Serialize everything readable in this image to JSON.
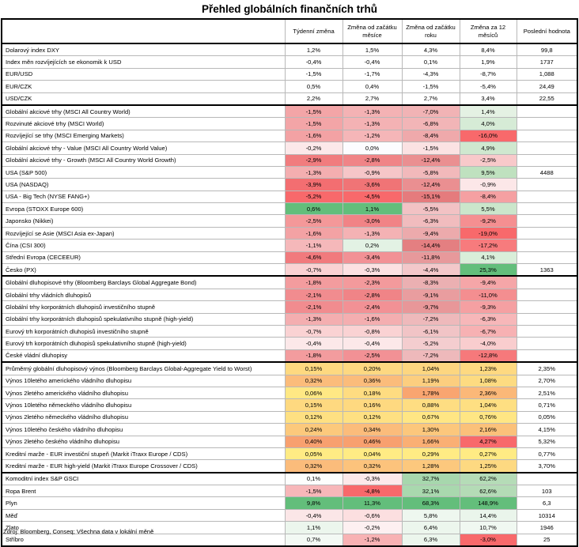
{
  "title": "Přehled globálních finančních trhů",
  "source": "Zdroj: Bloomberg, Conseq; Všechna data v lokální měně",
  "headers": [
    "",
    "Týdenní změna",
    "Změna od začátku měsíce",
    "Změna od začátku roku",
    "Změna za 12 měsíců",
    "Poslední hodnota"
  ],
  "groups": [
    {
      "rows": [
        [
          "Dolarový index DXY",
          "1,2%",
          "1,5%",
          "4,3%",
          "8,4%",
          "99,8"
        ],
        [
          "Index měn rozvíjejících se ekonomik k USD",
          "-0,4%",
          "-0,4%",
          "0,1%",
          "1,9%",
          "1737"
        ],
        [
          "EUR/USD",
          "-1,5%",
          "-1,7%",
          "-4,3%",
          "-8,7%",
          "1,088"
        ],
        [
          "EUR/CZK",
          "0,5%",
          "0,4%",
          "-1,5%",
          "-5,4%",
          "24,49"
        ],
        [
          "USD/CZK",
          "2,2%",
          "2,7%",
          "2,7%",
          "3,4%",
          "22,55"
        ]
      ],
      "colors": [
        [
          "",
          "",
          "",
          "",
          ""
        ],
        [
          "",
          "",
          "",
          "",
          ""
        ],
        [
          "",
          "",
          "",
          "",
          ""
        ],
        [
          "",
          "",
          "",
          "",
          ""
        ],
        [
          "",
          "",
          "",
          "",
          ""
        ]
      ]
    },
    {
      "rows": [
        [
          "Globální akciové trhy (MSCI All Country World)",
          "-1,5%",
          "-1,3%",
          "-7,0%",
          "1,4%",
          ""
        ],
        [
          "Rozvinuté akciové trhy (MSCI World)",
          "-1,5%",
          "-1,3%",
          "-6,8%",
          "4,0%",
          ""
        ],
        [
          "Rozvíjející se trhy (MSCI Emerging Markets)",
          "-1,6%",
          "-1,2%",
          "-8,4%",
          "-16,0%",
          ""
        ],
        [
          "Globální akciové trhy - Value (MSCI All Country World Value)",
          "-0,2%",
          "0,0%",
          "-1,5%",
          "4,9%",
          ""
        ],
        [
          "Globální akciové trhy - Growth (MSCI All Country World Growth)",
          "-2,9%",
          "-2,8%",
          "-12,4%",
          "-2,5%",
          ""
        ],
        [
          "USA (S&P 500)",
          "-1,3%",
          "-0,9%",
          "-5,8%",
          "9,5%",
          "4488"
        ],
        [
          "USA (NASDAQ)",
          "-3,9%",
          "-3,6%",
          "-12,4%",
          "-0,9%",
          ""
        ],
        [
          "USA - Big Tech (NYSE FANG+)",
          "-5,2%",
          "-4,5%",
          "-15,1%",
          "-8,4%",
          ""
        ],
        [
          "Evropa (STOXX Europe 600)",
          "0,6%",
          "1,1%",
          "-5,5%",
          "5,5%",
          ""
        ],
        [
          "Japonsko (Nikkei)",
          "-2,5%",
          "-3,0%",
          "-6,3%",
          "-9,2%",
          ""
        ],
        [
          "Rozvíjející se Asie (MSCI Asia ex-Japan)",
          "-1,6%",
          "-1,3%",
          "-9,4%",
          "-19,0%",
          ""
        ],
        [
          "Čína (CSI 300)",
          "-1,1%",
          "0,2%",
          "-14,4%",
          "-17,2%",
          ""
        ],
        [
          "Střední Evropa (CECEEUR)",
          "-4,6%",
          "-3,4%",
          "-11,8%",
          "4,1%",
          ""
        ],
        [
          "Česko (PX)",
          "-0,7%",
          "-0,3%",
          "-4,4%",
          "25,3%",
          "1363"
        ]
      ],
      "colors": [
        [
          "#f3a5a7",
          "#f4b2b4",
          "#f1b3b5",
          "#e4f1e3",
          ""
        ],
        [
          "#f3a5a7",
          "#f4b2b4",
          "#f2b5b7",
          "#d6ebd6",
          ""
        ],
        [
          "#f3a2a4",
          "#f5b6b8",
          "#efa9ab",
          "#f8696b",
          ""
        ],
        [
          "#fce8e9",
          "#fcfcff",
          "#fbe2e3",
          "#cfe8cf",
          ""
        ],
        [
          "#f17c7e",
          "#f08487",
          "#ea8f91",
          "#f8c9ca",
          ""
        ],
        [
          "#f4aeb0",
          "#f6c6c8",
          "#f2b9bb",
          "#bfe1bf",
          ""
        ],
        [
          "#f36e71",
          "#f07476",
          "#ea8f91",
          "#fce7e8",
          ""
        ],
        [
          "#f8696b",
          "#f8696b",
          "#e57b7d",
          "#f5a0a2",
          ""
        ],
        [
          "#63be7b",
          "#63be7b",
          "#f2c2c4",
          "#cbe6cb",
          ""
        ],
        [
          "#f49899",
          "#f18386",
          "#f1bcbe",
          "#f58f91",
          ""
        ],
        [
          "#f3a2a4",
          "#f4b2b4",
          "#ecaaac",
          "#f8696b",
          ""
        ],
        [
          "#f5b8ba",
          "#e3f2e4",
          "#e47f81",
          "#f77b7d",
          ""
        ],
        [
          "#f17a7d",
          "#f29195",
          "#e7999b",
          "#d9eed9",
          ""
        ],
        [
          "#fad2d3",
          "#fce1e2",
          "#f3c8ca",
          "#63be7b",
          ""
        ]
      ]
    },
    {
      "rows": [
        [
          "Globální dluhopisové trhy (Bloomberg Barclays Global Aggregate Bond)",
          "-1,8%",
          "-2,3%",
          "-8,3%",
          "-9,4%",
          ""
        ],
        [
          "Globální trhy vládních dluhopisů",
          "-2,1%",
          "-2,8%",
          "-9,1%",
          "-11,0%",
          ""
        ],
        [
          "Globální trhy korporátních dluhopisů investičního stupně",
          "-2,1%",
          "-2,4%",
          "-9,7%",
          "-9,3%",
          ""
        ],
        [
          "Globální trhy korporátních dluhopisů spekulativního stupně (high-yield)",
          "-1,3%",
          "-1,6%",
          "-7,2%",
          "-6,3%",
          ""
        ],
        [
          "Eurový trh korporátních dluhopisů investičního stupně",
          "-0,7%",
          "-0,8%",
          "-6,1%",
          "-6,7%",
          ""
        ],
        [
          "Eurový trh korporátních dluhopisů spekulativního stupně (high-yield)",
          "-0,4%",
          "-0,4%",
          "-5,2%",
          "-4,0%",
          ""
        ],
        [
          "České vládní dluhopisy",
          "-1,8%",
          "-2,5%",
          "-7,2%",
          "-12,8%",
          ""
        ]
      ],
      "colors": [
        [
          "#f39c9e",
          "#f39a9c",
          "#ebb0b2",
          "#f5a6a8",
          ""
        ],
        [
          "#f18c8f",
          "#f08487",
          "#e99d9f",
          "#f48e90",
          ""
        ],
        [
          "#f18c8f",
          "#f29195",
          "#e89799",
          "#f5a0a2",
          ""
        ],
        [
          "#f4aeb0",
          "#f4aeb0",
          "#eeb9bb",
          "#f7b7b9",
          ""
        ],
        [
          "#fad2d3",
          "#fad2d3",
          "#f1c4c6",
          "#f7b1b3",
          ""
        ],
        [
          "#fce8e9",
          "#fce8e9",
          "#f4cdcf",
          "#f9cdce",
          ""
        ],
        [
          "#f39c9e",
          "#f29195",
          "#eeb9bb",
          "#f6797b",
          ""
        ]
      ]
    },
    {
      "rows": [
        [
          "Průměrný globální dluhopisový výnos (Bloomberg Barclays Global-Aggregate Yield to Worst)",
          "0,15%",
          "0,20%",
          "1,04%",
          "1,23%",
          "2,35%"
        ],
        [
          "Výnos 10letého amerického vládního dluhopisu",
          "0,32%",
          "0,36%",
          "1,19%",
          "1,08%",
          "2,70%"
        ],
        [
          "Výnos 2letého amerického vládního dluhopisu",
          "0,06%",
          "0,18%",
          "1,78%",
          "2,36%",
          "2,51%"
        ],
        [
          "Výnos 10letého německého vládního dluhopisu",
          "0,15%",
          "0,16%",
          "0,88%",
          "1,04%",
          "0,71%"
        ],
        [
          "Výnos 2letého německého vládního dluhopisu",
          "0,12%",
          "0,12%",
          "0,67%",
          "0,76%",
          "0,05%"
        ],
        [
          "Výnos 10letého českého vládního dluhopisu",
          "0,24%",
          "0,34%",
          "1,30%",
          "2,16%",
          "4,15%"
        ],
        [
          "Výnos 2letého českého vládního dluhopisu",
          "0,40%",
          "0,46%",
          "1,66%",
          "4,27%",
          "5,32%"
        ],
        [
          "Kreditní marže - EUR investiční stupeň (Markit iTraxx Europe / CDS)",
          "0,05%",
          "0,04%",
          "0,29%",
          "0,27%",
          "0,77%"
        ],
        [
          "Kreditní marže - EUR high-yield (Markit iTraxx Europe Crossover / CDS)",
          "0,32%",
          "0,32%",
          "1,28%",
          "1,25%",
          "3,70%"
        ]
      ],
      "colors": [
        [
          "#fed980",
          "#fdd881",
          "#fdd680",
          "#fed981",
          ""
        ],
        [
          "#fbbc7b",
          "#fbbc7b",
          "#fcce7f",
          "#fddb81",
          ""
        ],
        [
          "#ffe884",
          "#fedc81",
          "#f9a570",
          "#fbb878",
          ""
        ],
        [
          "#fed980",
          "#fed980",
          "#fedd82",
          "#fedf82",
          ""
        ],
        [
          "#fee082",
          "#fee082",
          "#ffe684",
          "#ffe684",
          ""
        ],
        [
          "#fcc97c",
          "#fbbc7b",
          "#fcc77c",
          "#fbc17a",
          ""
        ],
        [
          "#f8a06f",
          "#f8a06f",
          "#faaf74",
          "#f8696b",
          ""
        ],
        [
          "#ffeb84",
          "#ffeb84",
          "#ffeb84",
          "#ffeb84",
          ""
        ],
        [
          "#fbbc7b",
          "#fcc37c",
          "#fcc87d",
          "#fdd981",
          ""
        ]
      ]
    },
    {
      "rows": [
        [
          "Komoditní index S&P GSCI",
          "0,1%",
          "-0,3%",
          "32,7%",
          "62,2%",
          ""
        ],
        [
          "Ropa Brent",
          "-1,5%",
          "-4,8%",
          "32,1%",
          "62,6%",
          "103"
        ],
        [
          "Plyn",
          "9,8%",
          "11,3%",
          "68,3%",
          "148,9%",
          "6,3"
        ],
        [
          "Měď",
          "-0,4%",
          "-0,6%",
          "5,8%",
          "14,4%",
          "10314"
        ],
        [
          "Zlato",
          "1,1%",
          "-0,2%",
          "6,4%",
          "10,7%",
          "1946"
        ],
        [
          "Stříbro",
          "0,7%",
          "-1,2%",
          "6,3%",
          "-3,0%",
          "25"
        ]
      ],
      "colors": [
        [
          "#fdfefd",
          "#fde9ea",
          "#a7d7ad",
          "#b5dcb7",
          ""
        ],
        [
          "#f7b7b9",
          "#f8696b",
          "#a9d8ae",
          "#b4dbb6",
          ""
        ],
        [
          "#63be7b",
          "#63be7b",
          "#63be7b",
          "#63be7b",
          ""
        ],
        [
          "#fbe6e7",
          "#fcdfe0",
          "#eef7ef",
          "#eaf5eb",
          ""
        ],
        [
          "#ecf6ed",
          "#fdf0f1",
          "#ecf6ed",
          "#f0f8f1",
          ""
        ],
        [
          "#f3f9f4",
          "#f8b2b4",
          "#ecf6ed",
          "#f8696b",
          ""
        ]
      ]
    }
  ]
}
